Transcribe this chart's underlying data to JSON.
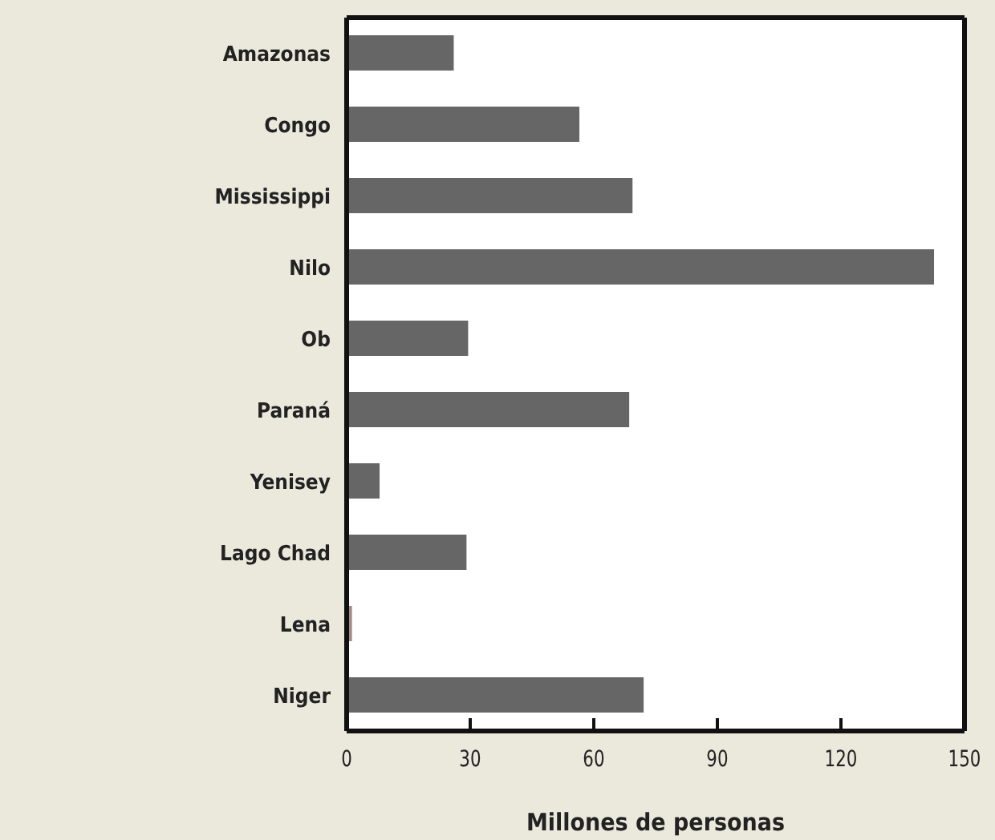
{
  "chart_data": {
    "type": "bar",
    "orientation": "horizontal",
    "xlabel": "Millones de personas",
    "categories": [
      "Amazonas",
      "Congo",
      "Mississippi",
      "Nilo",
      "Ob",
      "Paraná",
      "Yenisey",
      "Lago Chad",
      "Lena",
      "Niger"
    ],
    "values": [
      26,
      56.5,
      69.4,
      142.6,
      29.5,
      68.6,
      8,
      29.1,
      1.3,
      72.1
    ],
    "colors": [
      "#666666",
      "#666666",
      "#666666",
      "#666666",
      "#666666",
      "#666666",
      "#666666",
      "#666666",
      "#a88a86",
      "#666666"
    ],
    "xlim": [
      0,
      150
    ],
    "xticks": [
      0,
      30,
      60,
      90,
      120,
      150
    ],
    "grid": false
  }
}
